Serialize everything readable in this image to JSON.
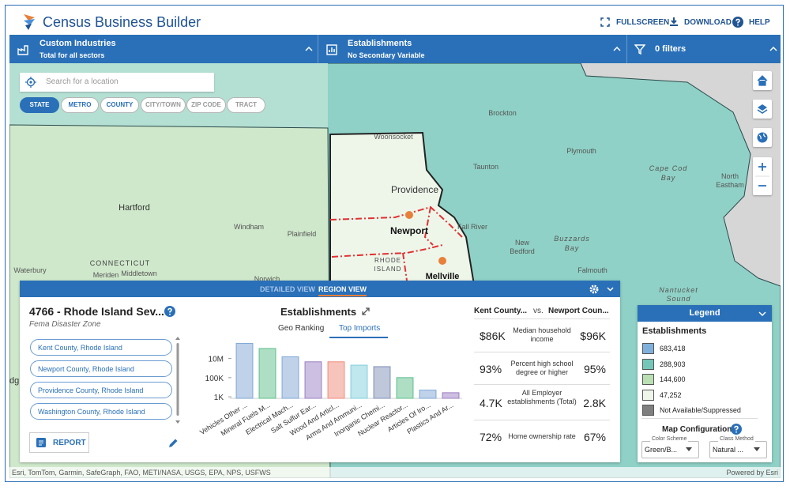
{
  "header": {
    "title": "Census Business Builder",
    "links": [
      "FULLSCREEN",
      "DOWNLOAD",
      "HELP"
    ]
  },
  "toolbar": {
    "industries": {
      "title": "Custom Industries",
      "subtitle": "Total for all sectors"
    },
    "variable": {
      "title": "Establishments",
      "subtitle": "No Secondary Variable"
    },
    "filters": "0 filters"
  },
  "search": {
    "placeholder": "Search for a location"
  },
  "geo_levels": [
    "STATE",
    "METRO",
    "COUNTY",
    "CITY/TOWN",
    "ZIP CODE",
    "TRACT"
  ],
  "map": {
    "labels": [
      "Brockton",
      "Woonsocket",
      "Plymouth",
      "Taunton",
      "Cape Cod",
      "Bay",
      "North",
      "Eastham",
      "Providence",
      "Hartford",
      "Windham",
      "Plainfield",
      "Fall River",
      "New",
      "Bedford",
      "Buzzards",
      "Bay",
      "Falmouth",
      "Newport",
      "CONNECTICUT",
      "Waterbury",
      "Meriden",
      "Middletown",
      "Norwich",
      "RHODE",
      "ISLAND",
      "Mellville",
      "Nantucket",
      "Sound",
      "dg"
    ]
  },
  "panel": {
    "tabs": [
      "DETAILED VIEW",
      "REGION VIEW"
    ],
    "region": {
      "title": "4766 - Rhode Island Sev...",
      "subtitle": "Fema Disaster Zone",
      "counties": [
        "Kent County, Rhode Island",
        "Newport County, Rhode Island",
        "Providence County, Rhode Island",
        "Washington County, Rhode Island"
      ],
      "report": "REPORT"
    },
    "comparison": {
      "left": "Kent County...",
      "vs": "vs.",
      "right": "Newport Coun...",
      "rows": [
        {
          "left": "$86K",
          "label": "Median household income",
          "right": "$96K"
        },
        {
          "left": "93%",
          "label": "Percent high school degree or higher",
          "right": "95%"
        },
        {
          "left": "4.7K",
          "label": "All Employer establishments (Total)",
          "right": "2.8K"
        },
        {
          "left": "72%",
          "label": "Home ownership rate",
          "right": "67%"
        }
      ]
    }
  },
  "chart_data": {
    "type": "bar",
    "title": "Establishments",
    "tabs": [
      "Geo Ranking",
      "Top Imports"
    ],
    "categories": [
      "Vehicles Other ...",
      "Mineral Fuels M...",
      "Electrical Mach...",
      "Salt Sulfur Ear...",
      "Wood And Articl...",
      "Arms And Ammuni...",
      "Inorganic Chemi...",
      "Nuclear Reactor...",
      "Articles Of Iro...",
      "Plastics And Ar..."
    ],
    "values": [
      370000000,
      110000000,
      15000000,
      4500000,
      4500000,
      2000000,
      1400000,
      100000,
      5000,
      2700
    ],
    "colors": [
      "#7fa6d6",
      "#5dbf8c",
      "#7fa6d6",
      "#9b7fc4",
      "#f08a7a",
      "#7fd0dc",
      "#7f8fb8",
      "#5dbf8c",
      "#7fa6d6",
      "#9b7fc4"
    ],
    "log_scale": true,
    "ylim": [
      700,
      600000000
    ],
    "yticks": [
      {
        "value": 1000,
        "label": "1K"
      },
      {
        "value": 100000,
        "label": "100K"
      },
      {
        "value": 10000000,
        "label": "10M"
      }
    ],
    "grid": false
  },
  "legend": {
    "title": "Legend",
    "variable": "Establishments",
    "items": [
      {
        "label": "683,418",
        "color": "#7fb0dc"
      },
      {
        "label": "288,903",
        "color": "#74c7b8"
      },
      {
        "label": "144,600",
        "color": "#b9dfb3"
      },
      {
        "label": "47,252",
        "color": "#eef6ea"
      },
      {
        "label": "Not Available/Suppressed",
        "color": "#7f7f7f"
      }
    ],
    "config_title": "Map Configuration",
    "color_scheme": {
      "label": "Color Scheme",
      "value": "Green/B..."
    },
    "class_method": {
      "label": "Class Method",
      "value": "Natural ..."
    }
  },
  "attribution": {
    "left": "Esri, TomTom, Garmin, SafeGraph, FAO, METI/NASA, USGS, EPA, NPS, USFWS",
    "right": "Powered by Esri"
  }
}
